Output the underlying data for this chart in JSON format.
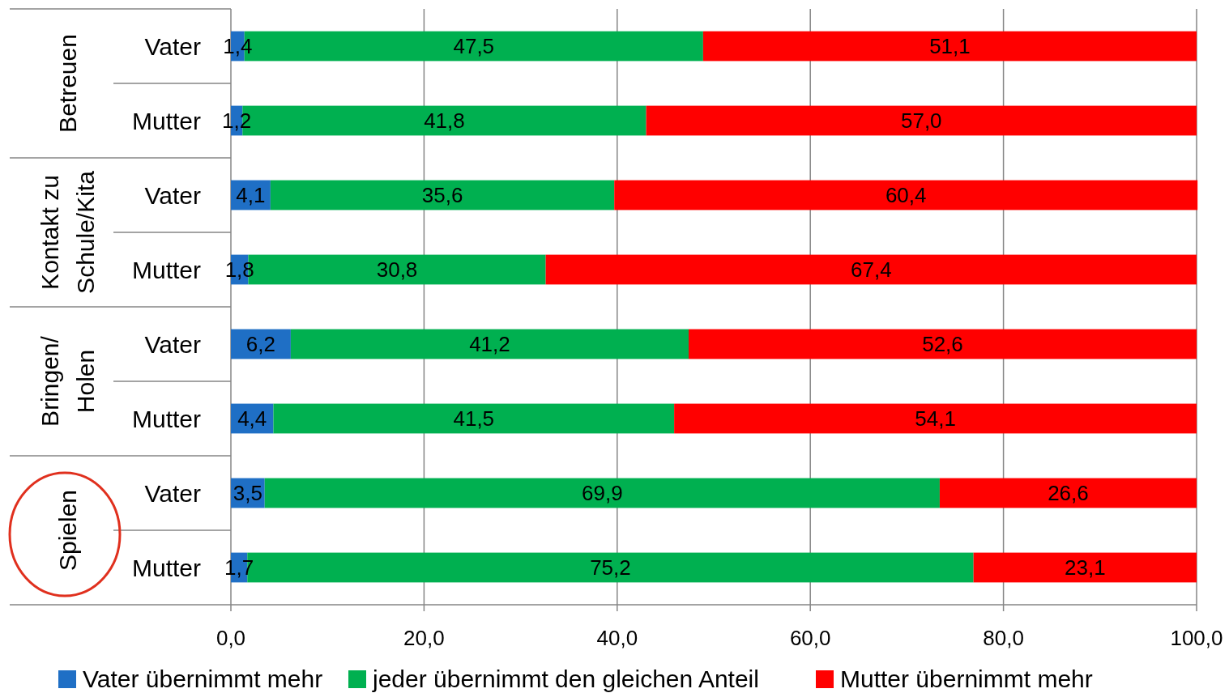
{
  "chart_data": {
    "type": "bar",
    "orientation": "horizontal",
    "stacked": true,
    "grid": "x",
    "legend": "bottom",
    "categories": [
      "Vater",
      "Mutter",
      "Vater",
      "Mutter",
      "Vater",
      "Mutter",
      "Vater",
      "Mutter"
    ],
    "annotations": [
      "Betreuen",
      "Kontakt zu\nSchule/Kita",
      "Bringen/\nHolen",
      "Spielen"
    ],
    "xlim": [
      0,
      100
    ],
    "xticks": [
      {
        "value": 0,
        "label": "0,0"
      },
      {
        "value": 20,
        "label": "20,0"
      },
      {
        "value": 40,
        "label": "40,0"
      },
      {
        "value": 60,
        "label": "60,0"
      },
      {
        "value": 80,
        "label": "80,0"
      },
      {
        "value": 100,
        "label": "100,0"
      }
    ],
    "series": [
      {
        "name": "Vater übernimmt mehr",
        "color": "#1f6fc5",
        "values": [
          1.4,
          1.2,
          4.1,
          1.8,
          6.2,
          4.4,
          3.5,
          1.7
        ],
        "value_labels": [
          "1,4",
          "1,2",
          "4,1",
          "1,8",
          "6,2",
          "4,4",
          "3,5",
          "1,7"
        ]
      },
      {
        "name": "jeder übernimmt den gleichen Anteil",
        "color": "#00b050",
        "values": [
          47.5,
          41.8,
          35.6,
          30.8,
          41.2,
          41.5,
          69.9,
          75.2
        ],
        "value_labels": [
          "47,5",
          "41,8",
          "35,6",
          "30,8",
          "41,2",
          "41,5",
          "69,9",
          "75,2"
        ]
      },
      {
        "name": "Mutter übernimmt mehr",
        "color": "#ff0000",
        "values": [
          51.1,
          57.0,
          60.4,
          67.4,
          52.6,
          54.1,
          26.6,
          23.1
        ],
        "value_labels": [
          "51,1",
          "57,0",
          "60,4",
          "67,4",
          "52,6",
          "54,1",
          "26,6",
          "23,1"
        ]
      }
    ]
  }
}
